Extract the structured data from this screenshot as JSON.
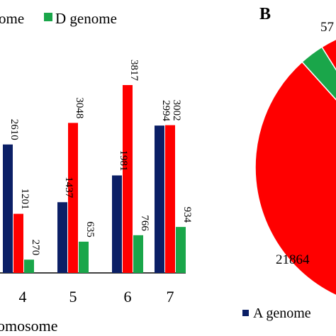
{
  "chart_data": [
    {
      "type": "bar",
      "panel": "",
      "categories": [
        "4",
        "5",
        "6",
        "7"
      ],
      "series": [
        {
          "name": "",
          "color": "#0b1f66",
          "values": [
            2610,
            1437,
            1981,
            2994
          ]
        },
        {
          "name": "",
          "color": "#ff0000",
          "values": [
            1201,
            3048,
            3817,
            3002
          ]
        },
        {
          "name": "D genome",
          "color": "#1aa64a",
          "values": [
            270,
            635,
            766,
            934
          ]
        }
      ],
      "legend_fragment": "ome",
      "xlabel": "omosome",
      "ylim": [
        0,
        4300
      ],
      "legend_position": "top",
      "grid": false
    },
    {
      "type": "pie",
      "panel": "B",
      "slices": [
        {
          "label": "57",
          "value": 57,
          "color": "#1aa64a"
        },
        {
          "label": "21864",
          "value": 21864,
          "color": "#ff0000"
        }
      ],
      "legend": [
        {
          "name": "A genome",
          "color": "#0b1f66"
        }
      ]
    }
  ]
}
